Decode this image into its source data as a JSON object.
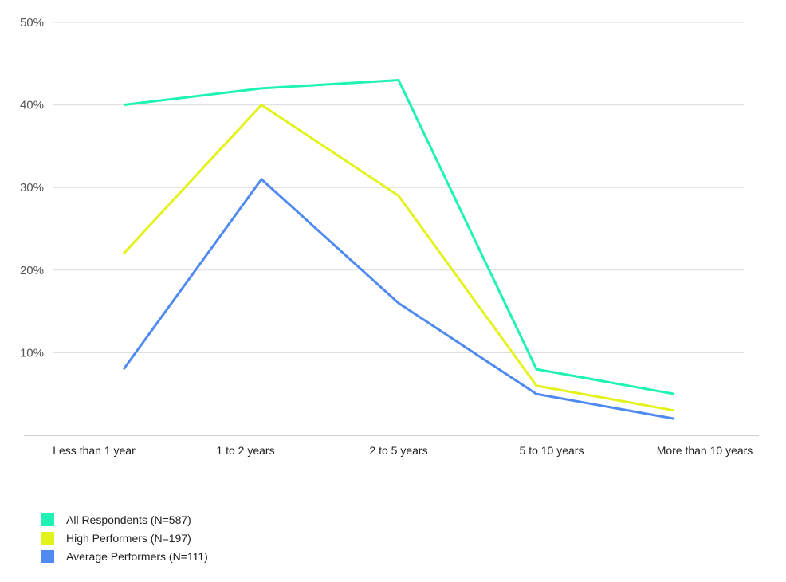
{
  "chart_data": {
    "type": "line",
    "categories": [
      "Less than 1 year",
      "1 to 2 years",
      "2 to 5 years",
      "5 to 10 years",
      "More than 10 years"
    ],
    "y_ticks": [
      "10%",
      "20%",
      "30%",
      "40%",
      "50%"
    ],
    "ylim": [
      0,
      50
    ],
    "grid": true,
    "legend_position": "bottom-left",
    "series": [
      {
        "name": "All Respondents (N=587)",
        "color": "#1ef2b4",
        "values": [
          40,
          42,
          43,
          8,
          5
        ]
      },
      {
        "name": "High Performers (N=197)",
        "color": "#e3f21a",
        "values": [
          22,
          40,
          29,
          6,
          3
        ]
      },
      {
        "name": "Average Performers (N=111)",
        "color": "#4e8af0",
        "values": [
          8,
          31,
          16,
          5,
          2
        ]
      }
    ]
  }
}
